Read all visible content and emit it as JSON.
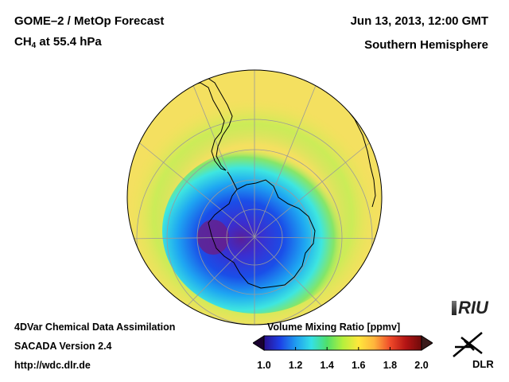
{
  "header": {
    "title_line1": "GOME–2 / MetOp Forecast",
    "species": "CH",
    "species_sub": "4",
    "level": " at 55.4 hPa",
    "datetime": "Jun 13, 2013, 12:00 GMT",
    "region": "Southern Hemisphere"
  },
  "footer": {
    "line1": "4DVar Chemical Data Assimilation",
    "line2": "SACADA Version 2.4",
    "line3": "http://wdc.dlr.de"
  },
  "colorbar": {
    "label": "Volume Mixing Ratio [ppmv]",
    "ticks": [
      "1.0",
      "1.2",
      "1.4",
      "1.6",
      "1.8",
      "2.0"
    ],
    "range": [
      1.0,
      2.0
    ],
    "colors": [
      "#2a0f8f",
      "#1d3fe6",
      "#1f9bf0",
      "#34e0e6",
      "#4fe06a",
      "#b4f03c",
      "#ffe83c",
      "#ffb43c",
      "#f04a2a",
      "#b41414",
      "#6e0a0a"
    ]
  },
  "logos": {
    "riu": "RIU",
    "dlr": "DLR"
  },
  "map_field": {
    "projection": "orthographic-south-polar",
    "background_value_ppmv": 1.58,
    "low_center_value_ppmv": 1.0,
    "colors": {
      "dark_low": "#4a1fa8",
      "low": "#1a3ee8",
      "mid_low": "#1ea0f2",
      "cyan": "#3ee6e0",
      "green": "#74e46c",
      "yellowgreen": "#c6ee54",
      "yellow": "#f4e25a",
      "coast": "#000000",
      "grid": "#9a9a9a"
    }
  }
}
